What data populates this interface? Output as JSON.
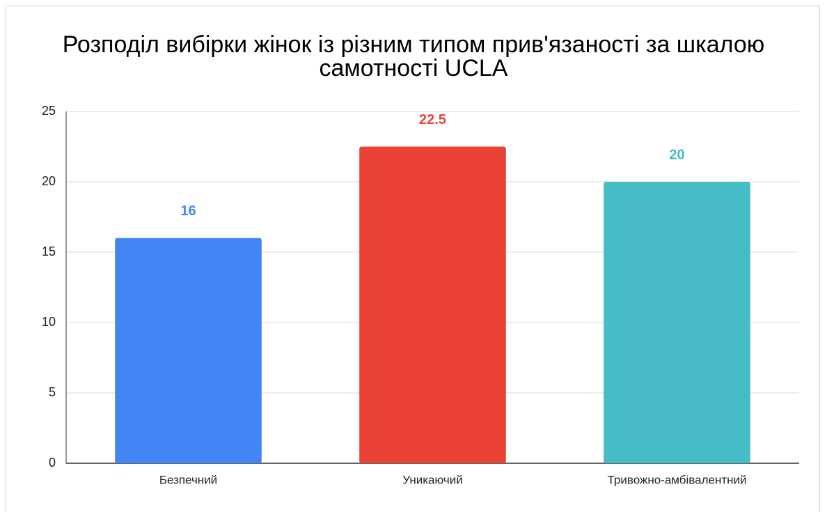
{
  "chart_data": {
    "type": "bar",
    "title": "Розподіл вибірки жінок із різним типом прив'язаності за шкалою самотності UCLA",
    "categories": [
      "Безпечний",
      "Уникаючий",
      "Тривожно-амбівалентний"
    ],
    "values": [
      16,
      22.5,
      20
    ],
    "colors": [
      "#4285f4",
      "#ea4335",
      "#46bdc6"
    ],
    "ylim": [
      0,
      25
    ],
    "yticks": [
      0,
      5,
      10,
      15,
      20,
      25
    ],
    "grid": true
  }
}
